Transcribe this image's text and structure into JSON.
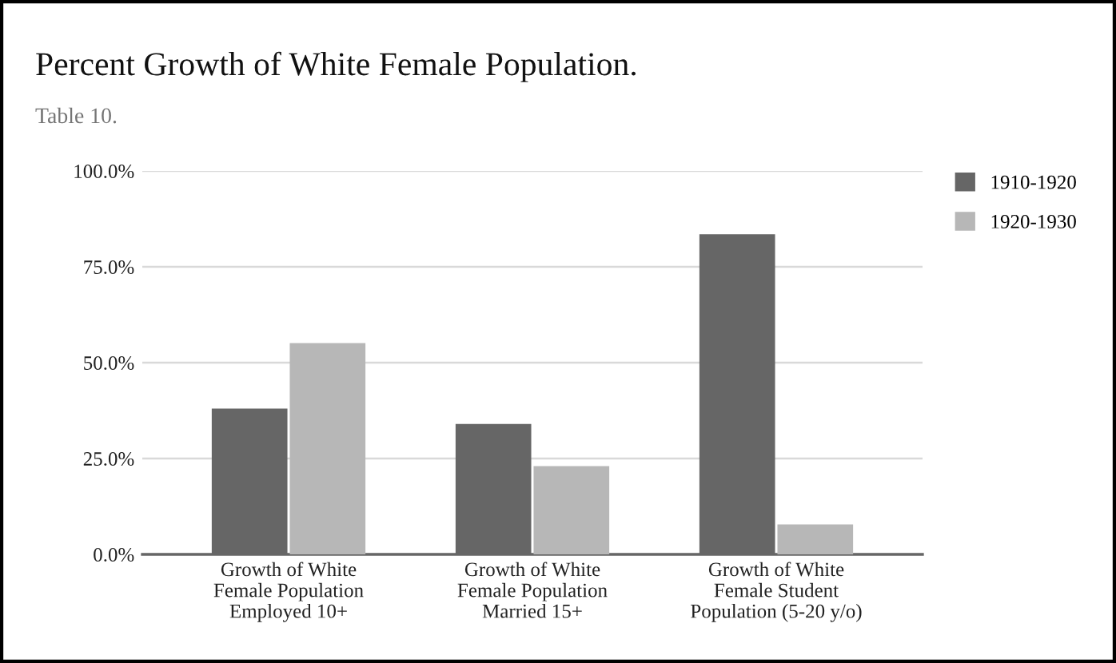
{
  "chart_data": {
    "type": "bar",
    "title": "Percent Growth of White Female Population.",
    "subtitle": "Table 10.",
    "categories": [
      "Growth of White\nFemale Population\nEmployed 10+",
      "Growth of White\nFemale Population\nMarried 15+",
      "Growth of White\nFemale Student\nPopulation (5-20 y/o)"
    ],
    "series": [
      {
        "name": "1910-1920",
        "color": "#666666",
        "values": [
          38.0,
          34.0,
          83.5
        ]
      },
      {
        "name": "1920-1930",
        "color": "#b7b7b7",
        "values": [
          55.1,
          23.0,
          7.8
        ]
      }
    ],
    "ylim": [
      0,
      100
    ],
    "yticks": [
      {
        "value": 0,
        "label": "0.0%"
      },
      {
        "value": 25,
        "label": "25.0%"
      },
      {
        "value": 50,
        "label": "50.0%"
      },
      {
        "value": 75,
        "label": "75.0%"
      },
      {
        "value": 100,
        "label": "100.0%"
      }
    ],
    "grid": "y",
    "legend": "top right"
  }
}
